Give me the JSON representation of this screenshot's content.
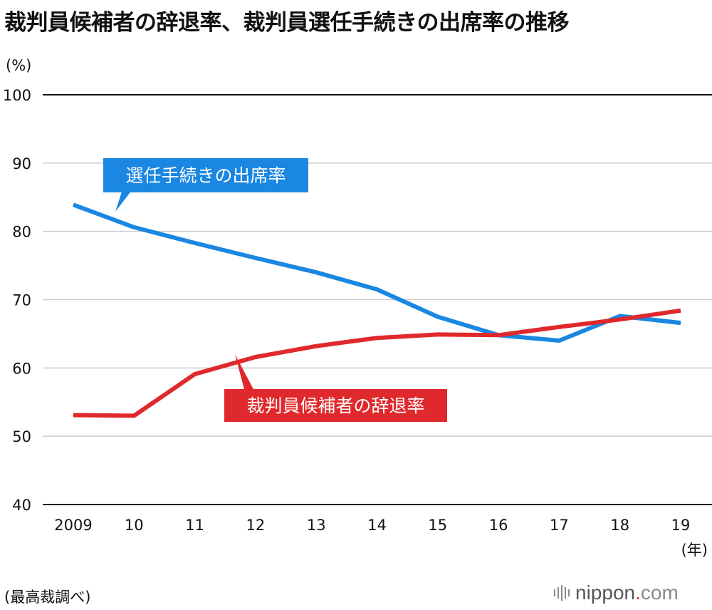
{
  "title": "裁判員候補者の辞退率、裁判員選任手続きの出席率の推移",
  "source": "(最高裁調べ)",
  "logo": {
    "name": "nippon",
    "dot": ".",
    "tld": "com"
  },
  "colors": {
    "attendance": "#1a87e2",
    "decline": "#e0292c",
    "grid": "#cccccc",
    "baseline": "#111111"
  },
  "chart_data": {
    "type": "line",
    "title": "裁判員候補者の辞退率、裁判員選任手続きの出席率の推移",
    "ylabel": "(%)",
    "xlabel": "(年)",
    "ylim": [
      40,
      100
    ],
    "yticks": [
      40,
      50,
      60,
      70,
      80,
      90,
      100
    ],
    "categories": [
      "2009",
      "10",
      "11",
      "12",
      "13",
      "14",
      "15",
      "16",
      "17",
      "18",
      "19"
    ],
    "series": [
      {
        "name": "選任手続きの出席率",
        "color": "#1a87e2",
        "values": [
          83.9,
          80.6,
          78.3,
          76.1,
          74.0,
          71.5,
          67.5,
          64.8,
          64.0,
          67.6,
          66.6
        ]
      },
      {
        "name": "裁判員候補者の辞退率",
        "color": "#e0292c",
        "values": [
          53.1,
          53.0,
          59.1,
          61.6,
          63.2,
          64.4,
          64.9,
          64.8,
          66.0,
          67.1,
          68.4
        ]
      }
    ]
  }
}
